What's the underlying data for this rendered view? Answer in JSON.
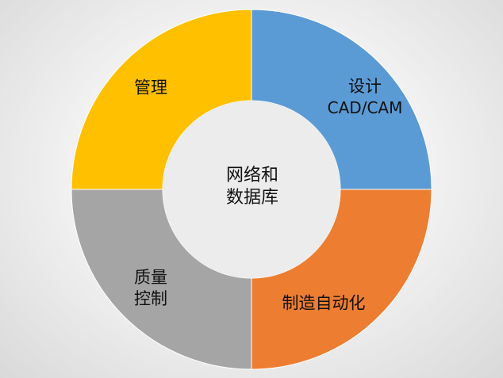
{
  "diagram": {
    "center": {
      "lines": [
        "网络和",
        "数据库"
      ],
      "color": "#ececec"
    },
    "segments": [
      {
        "id": "design",
        "lines": [
          "设计",
          "CAD/CAM"
        ],
        "color": "#5b9bd5"
      },
      {
        "id": "manufacturing",
        "lines": [
          "制造自动化"
        ],
        "color": "#ed7d31"
      },
      {
        "id": "quality",
        "lines": [
          "质量",
          "控制"
        ],
        "color": "#a5a5a5"
      },
      {
        "id": "management",
        "lines": [
          "管理"
        ],
        "color": "#ffc000"
      }
    ]
  }
}
